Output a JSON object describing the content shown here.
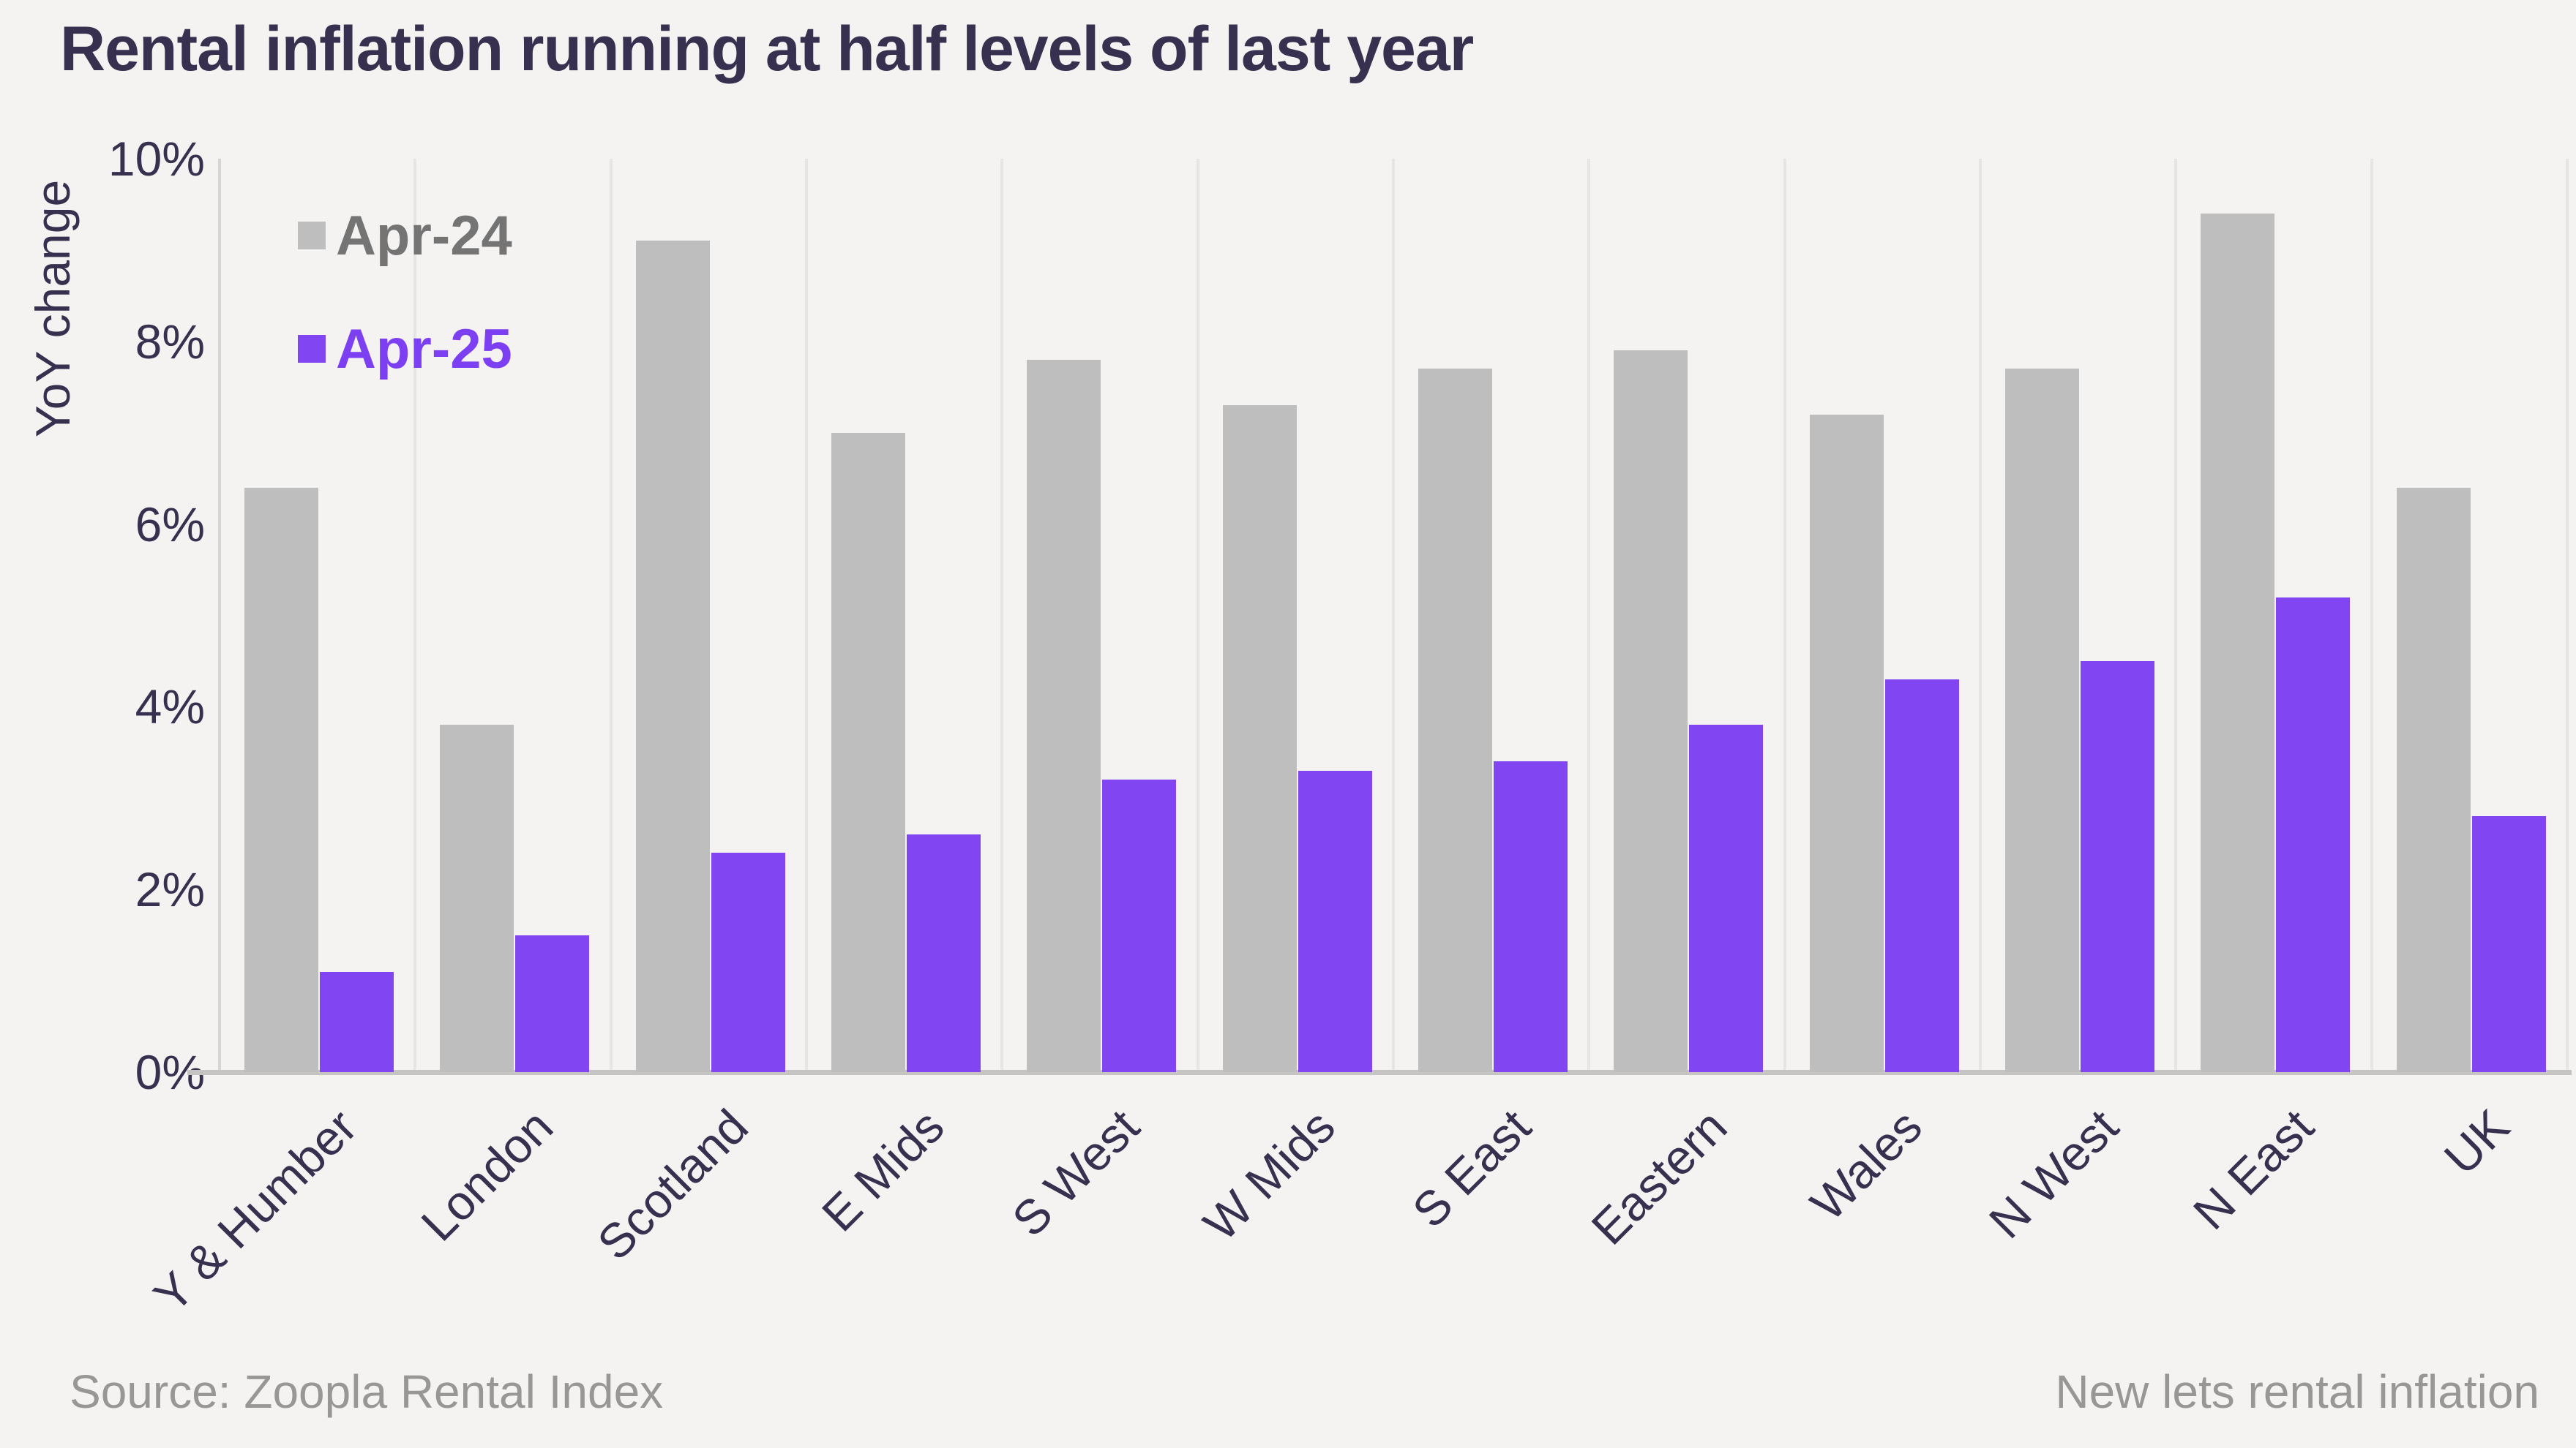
{
  "title": "Rental inflation running at half levels of last year",
  "footer": {
    "source": "Source: Zoopla Rental Index",
    "note": "New lets rental inflation"
  },
  "colors": {
    "background": "#f5f3f2",
    "ink": "#37304f",
    "grid": "#e7e5e4",
    "axis": "#d7d5d4",
    "baseline": "#c6c4c3",
    "muted": "#999795",
    "apr24_bar": "#bfbebe",
    "apr25_bar": "#8145f1"
  },
  "chart_data": {
    "type": "bar",
    "title": "Rental inflation running at half levels of last year",
    "xlabel": "",
    "ylabel": "YoY change",
    "ylim": [
      0,
      10
    ],
    "ytick_values": [
      10,
      8,
      6,
      4,
      2,
      0
    ],
    "ytick_labels": [
      "10%",
      "8%",
      "6%",
      "4%",
      "2%",
      "0%"
    ],
    "grid": "vertical",
    "legend_position": "top-left",
    "categories": [
      "Y & Humber",
      "London",
      "Scotland",
      "E Mids",
      "S West",
      "W Mids",
      "S East",
      "Eastern",
      "Wales",
      "N West",
      "N East",
      "UK"
    ],
    "series": [
      {
        "name": "Apr-24",
        "color": "#bfbebe",
        "legend_text_color": "#747474",
        "values": [
          6.4,
          3.8,
          9.1,
          7.0,
          7.8,
          7.3,
          7.7,
          7.9,
          7.2,
          7.7,
          9.4,
          6.4
        ]
      },
      {
        "name": "Apr-25",
        "color": "#8145f1",
        "legend_text_color": "#7d3ff2",
        "values": [
          1.1,
          1.5,
          2.4,
          2.6,
          3.2,
          3.3,
          3.4,
          3.8,
          4.3,
          4.5,
          5.2,
          2.8
        ]
      }
    ]
  }
}
